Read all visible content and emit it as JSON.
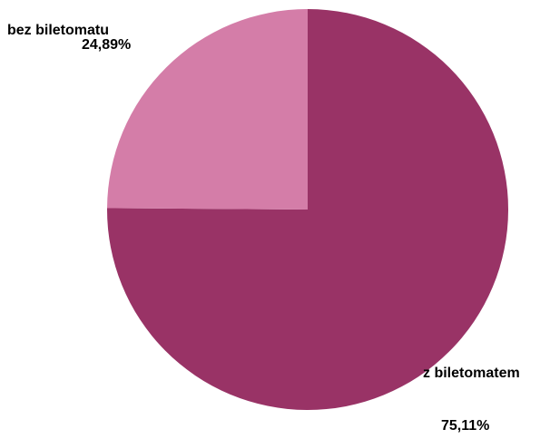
{
  "chart_data": {
    "type": "pie",
    "title": "",
    "slices": [
      {
        "name": "z biletomatem",
        "value": 75.11,
        "label": "75,11%",
        "color": "#993366"
      },
      {
        "name": "bez biletomatu",
        "value": 24.89,
        "label": "24,89%",
        "color": "#D47DA8"
      }
    ],
    "start_angle": "top",
    "direction": "clockwise",
    "legend": "none"
  }
}
